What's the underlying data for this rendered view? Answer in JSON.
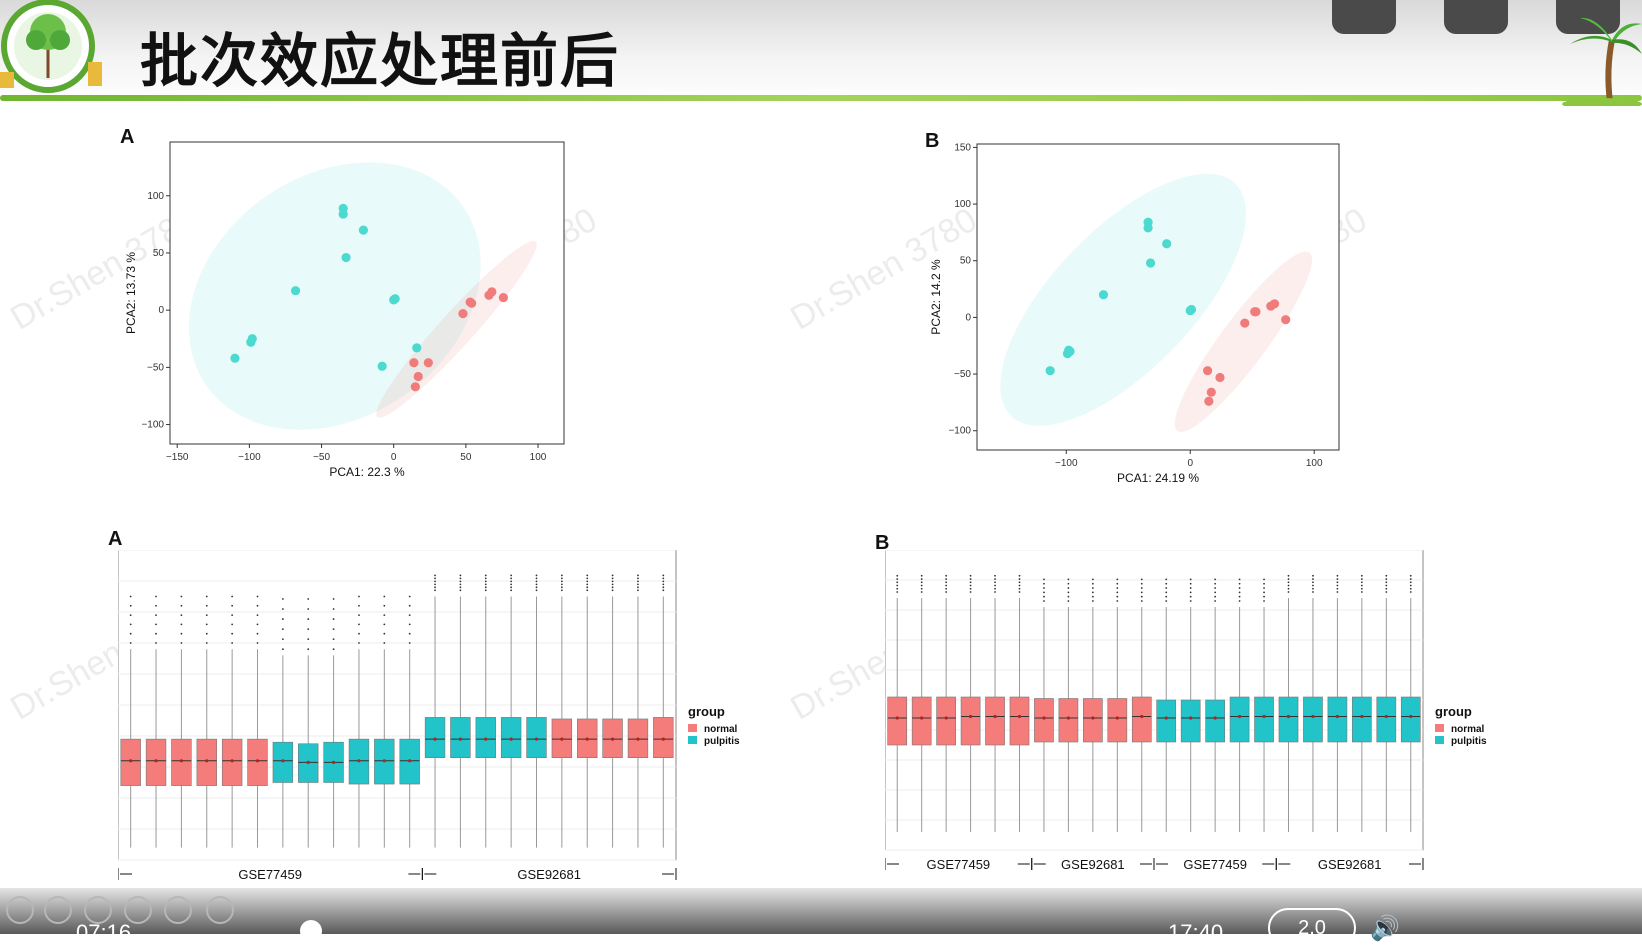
{
  "slide": {
    "title": "批次效应处理前后",
    "watermark": "Dr.Shen 3780"
  },
  "colors": {
    "normal": "#f07b7b",
    "pulpitis": "#4cd9cf",
    "normal_box": "#f47c7a",
    "pulpitis_box": "#22c3c9",
    "title_line": "#8cc63f"
  },
  "player": {
    "elapsed": "07:16",
    "total": "17:40",
    "speed": "2.0"
  },
  "chart_data": [
    {
      "panel": "A",
      "type": "scatter",
      "xlabel": "PCA1: 22.3 %",
      "ylabel": "PCA2: 13.73 %",
      "xlim": [
        -155,
        118
      ],
      "ylim": [
        -117,
        147
      ],
      "xticks": [
        -150,
        -100,
        -50,
        0,
        50,
        100
      ],
      "yticks": [
        -100,
        -50,
        0,
        50,
        100
      ],
      "series": [
        {
          "name": "pulpitis",
          "points": [
            [
              -35,
              89
            ],
            [
              -35,
              84
            ],
            [
              -21,
              70
            ],
            [
              -33,
              46
            ],
            [
              -68,
              17
            ],
            [
              0,
              9
            ],
            [
              1,
              10
            ],
            [
              -110,
              -42
            ],
            [
              -98,
              -25
            ],
            [
              -99,
              -28
            ],
            [
              16,
              -33
            ],
            [
              -8,
              -49
            ]
          ]
        },
        {
          "name": "normal",
          "points": [
            [
              48,
              -3
            ],
            [
              53,
              7
            ],
            [
              54,
              6
            ],
            [
              66,
              13
            ],
            [
              68,
              16
            ],
            [
              76,
              11
            ],
            [
              14,
              -46
            ],
            [
              24,
              -46
            ],
            [
              17,
              -58
            ],
            [
              15,
              -67
            ]
          ]
        }
      ]
    },
    {
      "panel": "B",
      "type": "scatter",
      "xlabel": "PCA1: 24.19 %",
      "ylabel": "PCA2: 14.2 %",
      "xlim": [
        -172,
        120
      ],
      "ylim": [
        -117,
        153
      ],
      "xticks": [
        -100,
        0,
        100
      ],
      "yticks": [
        -100,
        -50,
        0,
        50,
        100,
        150
      ],
      "series": [
        {
          "name": "pulpitis",
          "points": [
            [
              -34,
              84
            ],
            [
              -34,
              79
            ],
            [
              -19,
              65
            ],
            [
              -32,
              48
            ],
            [
              -70,
              20
            ],
            [
              0,
              6
            ],
            [
              1,
              7
            ],
            [
              -113,
              -47
            ],
            [
              -99,
              -32
            ],
            [
              -98,
              -29
            ],
            [
              -97,
              -30
            ]
          ]
        },
        {
          "name": "normal",
          "points": [
            [
              44,
              -5
            ],
            [
              52,
              5
            ],
            [
              53,
              5
            ],
            [
              65,
              10
            ],
            [
              68,
              12
            ],
            [
              77,
              -2
            ],
            [
              14,
              -47
            ],
            [
              24,
              -53
            ],
            [
              17,
              -66
            ],
            [
              15,
              -74
            ]
          ]
        }
      ]
    },
    {
      "panel": "A",
      "type": "box",
      "legend_title": "group",
      "legend": [
        "normal",
        "pulpitis"
      ],
      "groups": [
        "GSE77459",
        "GSE92681"
      ],
      "ylim": [
        0,
        10
      ],
      "boxes": [
        {
          "g": "normal",
          "q1": 2.4,
          "med": 3.2,
          "q3": 3.9,
          "lo": 0.4,
          "hi": 6.8,
          "out": true
        },
        {
          "g": "normal",
          "q1": 2.4,
          "med": 3.2,
          "q3": 3.9,
          "lo": 0.4,
          "hi": 6.8,
          "out": true
        },
        {
          "g": "normal",
          "q1": 2.4,
          "med": 3.2,
          "q3": 3.9,
          "lo": 0.4,
          "hi": 6.8,
          "out": true
        },
        {
          "g": "normal",
          "q1": 2.4,
          "med": 3.2,
          "q3": 3.9,
          "lo": 0.4,
          "hi": 6.8,
          "out": true
        },
        {
          "g": "normal",
          "q1": 2.4,
          "med": 3.2,
          "q3": 3.9,
          "lo": 0.4,
          "hi": 6.8,
          "out": true
        },
        {
          "g": "normal",
          "q1": 2.4,
          "med": 3.2,
          "q3": 3.9,
          "lo": 0.4,
          "hi": 6.8,
          "out": true
        },
        {
          "g": "pulpitis",
          "q1": 2.5,
          "med": 3.2,
          "q3": 3.8,
          "lo": 0.4,
          "hi": 6.6,
          "out": true
        },
        {
          "g": "pulpitis",
          "q1": 2.5,
          "med": 3.15,
          "q3": 3.75,
          "lo": 0.4,
          "hi": 6.6,
          "out": true
        },
        {
          "g": "pulpitis",
          "q1": 2.5,
          "med": 3.15,
          "q3": 3.8,
          "lo": 0.4,
          "hi": 6.6,
          "out": true
        },
        {
          "g": "pulpitis",
          "q1": 2.45,
          "med": 3.2,
          "q3": 3.9,
          "lo": 0.4,
          "hi": 6.8,
          "out": true
        },
        {
          "g": "pulpitis",
          "q1": 2.45,
          "med": 3.2,
          "q3": 3.9,
          "lo": 0.4,
          "hi": 6.8,
          "out": true
        },
        {
          "g": "pulpitis",
          "q1": 2.45,
          "med": 3.2,
          "q3": 3.9,
          "lo": 0.4,
          "hi": 6.8,
          "out": true
        },
        {
          "g": "pulpitis",
          "q1": 3.3,
          "med": 3.9,
          "q3": 4.6,
          "lo": 0.4,
          "hi": 8.5,
          "out": true
        },
        {
          "g": "pulpitis",
          "q1": 3.3,
          "med": 3.9,
          "q3": 4.6,
          "lo": 0.4,
          "hi": 8.5,
          "out": true
        },
        {
          "g": "pulpitis",
          "q1": 3.3,
          "med": 3.9,
          "q3": 4.6,
          "lo": 0.4,
          "hi": 8.5,
          "out": true
        },
        {
          "g": "pulpitis",
          "q1": 3.3,
          "med": 3.9,
          "q3": 4.6,
          "lo": 0.4,
          "hi": 8.5,
          "out": true
        },
        {
          "g": "pulpitis",
          "q1": 3.3,
          "med": 3.9,
          "q3": 4.6,
          "lo": 0.4,
          "hi": 8.5,
          "out": true
        },
        {
          "g": "normal",
          "q1": 3.3,
          "med": 3.9,
          "q3": 4.55,
          "lo": 0.4,
          "hi": 8.5,
          "out": true
        },
        {
          "g": "normal",
          "q1": 3.3,
          "med": 3.9,
          "q3": 4.55,
          "lo": 0.4,
          "hi": 8.5,
          "out": true
        },
        {
          "g": "normal",
          "q1": 3.3,
          "med": 3.9,
          "q3": 4.55,
          "lo": 0.4,
          "hi": 8.5,
          "out": true
        },
        {
          "g": "normal",
          "q1": 3.3,
          "med": 3.9,
          "q3": 4.55,
          "lo": 0.4,
          "hi": 8.5,
          "out": true
        },
        {
          "g": "normal",
          "q1": 3.3,
          "med": 3.9,
          "q3": 4.6,
          "lo": 0.4,
          "hi": 8.5,
          "out": true
        }
      ]
    },
    {
      "panel": "B",
      "type": "box",
      "legend_title": "group",
      "legend": [
        "normal",
        "pulpitis"
      ],
      "groups": [
        "GSE77459",
        "GSE92681",
        "GSE77459",
        "GSE92681"
      ],
      "ylim": [
        0,
        10
      ],
      "boxes": [
        {
          "g": "normal",
          "q1": 3.5,
          "med": 4.4,
          "q3": 5.1,
          "lo": 0.6,
          "hi": 8.4,
          "out": true
        },
        {
          "g": "normal",
          "q1": 3.5,
          "med": 4.4,
          "q3": 5.1,
          "lo": 0.6,
          "hi": 8.4,
          "out": true
        },
        {
          "g": "normal",
          "q1": 3.5,
          "med": 4.4,
          "q3": 5.1,
          "lo": 0.6,
          "hi": 8.4,
          "out": true
        },
        {
          "g": "normal",
          "q1": 3.5,
          "med": 4.45,
          "q3": 5.1,
          "lo": 0.6,
          "hi": 8.4,
          "out": true
        },
        {
          "g": "normal",
          "q1": 3.5,
          "med": 4.45,
          "q3": 5.1,
          "lo": 0.6,
          "hi": 8.4,
          "out": true
        },
        {
          "g": "normal",
          "q1": 3.5,
          "med": 4.45,
          "q3": 5.1,
          "lo": 0.6,
          "hi": 8.4,
          "out": true
        },
        {
          "g": "normal",
          "q1": 3.6,
          "med": 4.4,
          "q3": 5.05,
          "lo": 0.6,
          "hi": 8.1,
          "out": true
        },
        {
          "g": "normal",
          "q1": 3.6,
          "med": 4.4,
          "q3": 5.05,
          "lo": 0.6,
          "hi": 8.1,
          "out": true
        },
        {
          "g": "normal",
          "q1": 3.6,
          "med": 4.4,
          "q3": 5.05,
          "lo": 0.6,
          "hi": 8.1,
          "out": true
        },
        {
          "g": "normal",
          "q1": 3.6,
          "med": 4.4,
          "q3": 5.05,
          "lo": 0.6,
          "hi": 8.1,
          "out": true
        },
        {
          "g": "normal",
          "q1": 3.6,
          "med": 4.45,
          "q3": 5.1,
          "lo": 0.6,
          "hi": 8.1,
          "out": true
        },
        {
          "g": "pulpitis",
          "q1": 3.6,
          "med": 4.4,
          "q3": 5.0,
          "lo": 0.6,
          "hi": 8.1,
          "out": true
        },
        {
          "g": "pulpitis",
          "q1": 3.6,
          "med": 4.4,
          "q3": 5.0,
          "lo": 0.6,
          "hi": 8.1,
          "out": true
        },
        {
          "g": "pulpitis",
          "q1": 3.6,
          "med": 4.4,
          "q3": 5.0,
          "lo": 0.6,
          "hi": 8.1,
          "out": true
        },
        {
          "g": "pulpitis",
          "q1": 3.6,
          "med": 4.45,
          "q3": 5.1,
          "lo": 0.6,
          "hi": 8.1,
          "out": true
        },
        {
          "g": "pulpitis",
          "q1": 3.6,
          "med": 4.45,
          "q3": 5.1,
          "lo": 0.6,
          "hi": 8.1,
          "out": true
        },
        {
          "g": "pulpitis",
          "q1": 3.6,
          "med": 4.45,
          "q3": 5.1,
          "lo": 0.6,
          "hi": 8.4,
          "out": true
        },
        {
          "g": "pulpitis",
          "q1": 3.6,
          "med": 4.45,
          "q3": 5.1,
          "lo": 0.6,
          "hi": 8.4,
          "out": true
        },
        {
          "g": "pulpitis",
          "q1": 3.6,
          "med": 4.45,
          "q3": 5.1,
          "lo": 0.6,
          "hi": 8.4,
          "out": true
        },
        {
          "g": "pulpitis",
          "q1": 3.6,
          "med": 4.45,
          "q3": 5.1,
          "lo": 0.6,
          "hi": 8.4,
          "out": true
        },
        {
          "g": "pulpitis",
          "q1": 3.6,
          "med": 4.45,
          "q3": 5.1,
          "lo": 0.6,
          "hi": 8.4,
          "out": true
        },
        {
          "g": "pulpitis",
          "q1": 3.6,
          "med": 4.45,
          "q3": 5.1,
          "lo": 0.6,
          "hi": 8.4,
          "out": true
        }
      ]
    }
  ]
}
